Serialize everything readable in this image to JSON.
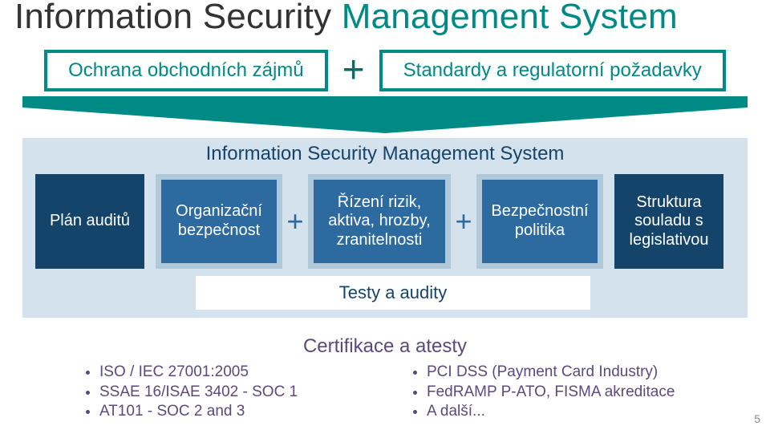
{
  "title": {
    "part1": "Information Security ",
    "part2": "Management System"
  },
  "top_row": {
    "left_label": "Ochrana obchodních zájmů",
    "right_label": "Standardy a regulatorní požadavky",
    "plus": "+"
  },
  "colors": {
    "teal": "#008a86",
    "teal_dark": "#006e6a",
    "navy": "#15446a",
    "mid_blue": "#2d6a9f",
    "light_blue_border": "#afc9da",
    "blue_band": "#d3e2ec",
    "purple": "#5a4a7d",
    "grey": "#888888"
  },
  "diagram": {
    "title": "Information Security Management System",
    "tiles": [
      {
        "label": "Plán auditů",
        "bg": "navy",
        "bordered": false
      },
      {
        "label": "Organizační\nbezpečnost",
        "bg": "mid",
        "bordered": true
      },
      {
        "label": "Řízení rizik,\naktiva, hrozby,\nzranitelnosti",
        "bg": "wide",
        "bordered": true
      },
      {
        "label": "Bezpečnostní\npolitika",
        "bg": "mid",
        "bordered": true
      },
      {
        "label": "Struktura\nsouladu s\nlegislativou",
        "bg": "navy",
        "bordered": false
      }
    ],
    "plus_after_index": [
      1,
      2
    ],
    "footer_label": "Testy a audity"
  },
  "cert": {
    "title": "Certifikace a atesty",
    "left": [
      "ISO / IEC 27001:2005",
      "SSAE 16/ISAE 3402 - SOC 1",
      "AT101 - SOC 2 and 3"
    ],
    "right": [
      "PCI DSS (Payment Card Industry)",
      "FedRAMP P-ATO, FISMA akreditace",
      "A další..."
    ]
  },
  "page_number": "5",
  "chevron": {
    "fill": "#008a86"
  }
}
